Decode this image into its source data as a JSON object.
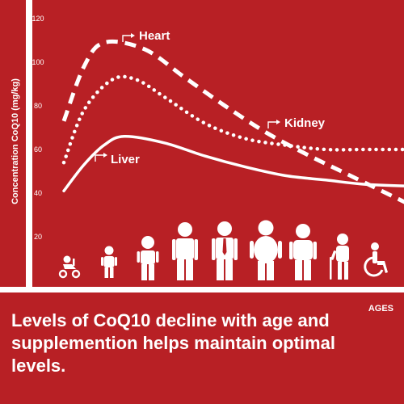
{
  "chart_data": {
    "type": "line",
    "ylabel": "Concentration CoQ10 (mg/kg)",
    "xlabel": "AGES",
    "y_ticks": [
      "20",
      "40",
      "60",
      "80",
      "100",
      "120"
    ],
    "ylim": [
      0,
      120
    ],
    "x_categories": [
      "toddler",
      "child",
      "child",
      "adult",
      "adult",
      "adult",
      "adult",
      "elderly",
      "wheelchair"
    ],
    "series": [
      {
        "name": "Heart",
        "style": "dashed",
        "points": [
          [
            0,
            73
          ],
          [
            0.5,
            98
          ],
          [
            1,
            109
          ],
          [
            2,
            106
          ],
          [
            3,
            93
          ],
          [
            4,
            80
          ],
          [
            5,
            68
          ],
          [
            6,
            58
          ],
          [
            7,
            49
          ],
          [
            8,
            40
          ],
          [
            9,
            31
          ]
        ]
      },
      {
        "name": "Kidney",
        "style": "dotted",
        "points": [
          [
            0,
            54
          ],
          [
            0.5,
            78
          ],
          [
            1.2,
            92
          ],
          [
            1.8,
            92
          ],
          [
            2.5,
            84
          ],
          [
            3.5,
            72
          ],
          [
            4.5,
            65
          ],
          [
            5.5,
            62
          ],
          [
            6.5,
            60
          ],
          [
            7.5,
            60
          ],
          [
            9,
            60
          ]
        ]
      },
      {
        "name": "Liver",
        "style": "solid",
        "points": [
          [
            0,
            41
          ],
          [
            0.5,
            53
          ],
          [
            1,
            62
          ],
          [
            1.5,
            66
          ],
          [
            2.5,
            63
          ],
          [
            3.5,
            57
          ],
          [
            4.5,
            52
          ],
          [
            5.5,
            48
          ],
          [
            6.5,
            46
          ],
          [
            7.5,
            44
          ],
          [
            9,
            43
          ]
        ]
      }
    ],
    "colors": {
      "background": "#b82025",
      "foreground": "#ffffff"
    }
  },
  "caption": "Levels of CoQ10 decline with age and supplemention helps maintain optimal levels.",
  "person_icons": [
    "toddler-riding-icon",
    "child-icon",
    "child-icon",
    "man-icon",
    "man-with-tie-icon",
    "heavy-man-icon",
    "older-man-icon",
    "elderly-with-cane-icon",
    "wheelchair-user-icon"
  ]
}
